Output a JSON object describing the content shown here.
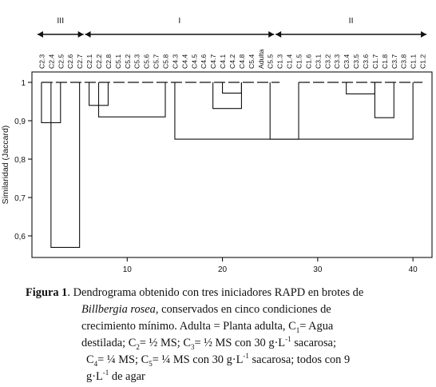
{
  "chart_data": {
    "type": "dendrogram",
    "ylabel": "Similaridad (Jaccard)",
    "ylim": [
      0.55,
      1.03
    ],
    "yticks": [
      "1",
      "0,9",
      "0,8",
      "0,7",
      "0,6"
    ],
    "xlim": [
      0,
      42
    ],
    "xticks": [
      "10",
      "20",
      "30",
      "40"
    ],
    "leaves": [
      "C2.3",
      "C2.4",
      "C2.5",
      "C2.6",
      "C2.7",
      "C2.1",
      "C2.2",
      "C2.8",
      "C5.1",
      "C5.2",
      "C5.3",
      "C5.6",
      "C5.7",
      "C5.8",
      "C4.3",
      "C4.4",
      "C4.5",
      "C4.6",
      "C4.7",
      "C4.1",
      "C4.2",
      "C4.8",
      "C5.4",
      "Adulta",
      "C5.5",
      "C1.3",
      "C1.4",
      "C1.5",
      "C1.6",
      "C3.1",
      "C3.2",
      "C3.3",
      "C3.4",
      "C3.5",
      "C3.6",
      "C1.7",
      "C1.8",
      "C3.7",
      "C3.8",
      "C1.1",
      "C1.2"
    ],
    "groups": [
      {
        "label": "III",
        "from": 1,
        "to": 5
      },
      {
        "label": "I",
        "from": 6,
        "to": 25
      },
      {
        "label": "II",
        "from": 26,
        "to": 41
      }
    ],
    "merges": [
      {
        "a": [
          1,
          3
        ],
        "b": [
          3,
          5
        ],
        "height": 0.895
      },
      {
        "a": [
          6,
          8
        ],
        "b": [
          8,
          19
        ],
        "height": 0.94
      },
      {
        "a": [
          20,
          22
        ],
        "b": [
          22,
          25
        ],
        "height": 0.972
      },
      {
        "a": [
          19,
          22
        ],
        "b": [
          22,
          24
        ],
        "height": 0.932
      },
      {
        "a": [
          7,
          14
        ],
        "b": [
          14,
          24
        ],
        "height": 0.91
      },
      {
        "a": [
          33,
          36
        ],
        "b": [
          36,
          39
        ],
        "height": 0.97
      },
      {
        "a": [
          36,
          38
        ],
        "b": [
          38,
          41
        ],
        "height": 0.908
      },
      {
        "a": [
          25,
          40
        ],
        "b": [
          40,
          41
        ],
        "height": 0.852
      },
      {
        "a": [
          15,
          28
        ],
        "b": [
          28,
          41
        ],
        "height": 0.852
      },
      {
        "a": [
          2,
          5
        ],
        "b": [
          5,
          28
        ],
        "height": 0.57
      }
    ],
    "segments": [
      [
        1,
        26,
        1.0
      ],
      [
        28,
        41,
        1.0
      ]
    ]
  },
  "caption": {
    "number": "Figura 1",
    "l1_a": ". Dendrograma obtenido con tres iniciadores RAPD en brotes de",
    "l2_species": "Billbergia rosea,",
    "l2_b": " conservados en  cinco  condiciones  de",
    "l3": "crecimiento mínimo.  Adulta = Planta adulta, C",
    "l3_sub": "1",
    "l3_b": "= Agua",
    "l4_a": "destilada; C",
    "l4_sub2": "2",
    "l4_b": "= ½ MS; C",
    "l4_sub3": "3",
    "l4_c": "=  ½ MS con 30 g·L",
    "l4_sup": "-1",
    "l4_d": " sacarosa;",
    "l5_a": "C",
    "l5_sub4": "4",
    "l5_b": "= ¼ MS; C",
    "l5_sub5": "5",
    "l5_c": "= ¼ MS con 30 g·L",
    "l5_sup": "-1",
    "l5_d": "  sacarosa; todos con 9",
    "l6_a": "g·L",
    "l6_sup": "-1",
    "l6_b": " de agar"
  }
}
